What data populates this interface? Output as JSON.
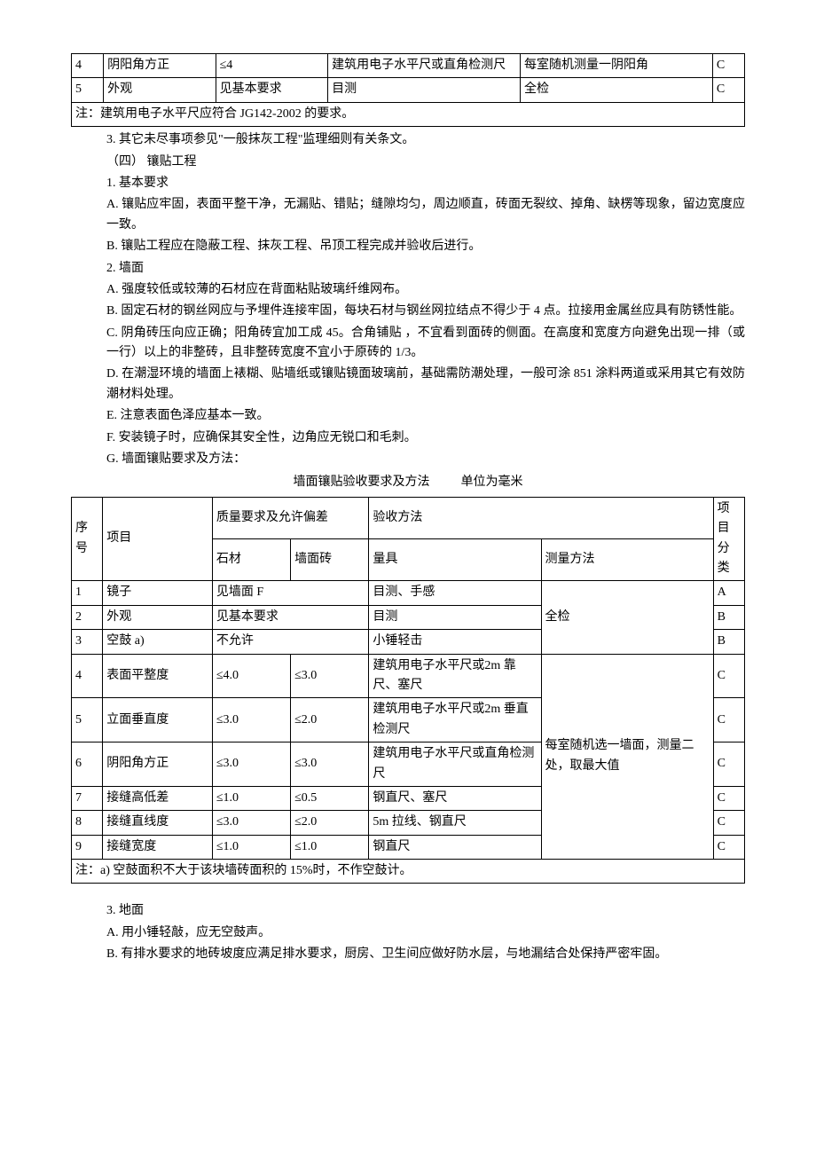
{
  "table1": {
    "rows": [
      {
        "seq": "4",
        "item": "阴阳角方正",
        "req": "≤4",
        "tool": "建筑用电子水平尺或直角检测尺",
        "method": "每室随机测量一阴阳角",
        "cat": "C"
      },
      {
        "seq": "5",
        "item": "外观",
        "req": "见基本要求",
        "tool": "目测",
        "method": "全检",
        "cat": "C"
      }
    ],
    "note": "注：建筑用电子水平尺应符合 JG142-2002 的要求。"
  },
  "body1": {
    "p3": "3.   其它未尽事项参见\"一般抹灰工程\"监理细则有关条文。",
    "s4": "（四）   镶贴工程",
    "p1": "1.   基本要求",
    "pA": "A.   镶贴应牢固，表面平整干净，无漏贴、错贴；缝隙均匀，周边顺直，砖面无裂纹、掉角、缺楞等现象，留边宽度应一致。",
    "pB": "B.   镶贴工程应在隐蔽工程、抹灰工程、吊顶工程完成并验收后进行。",
    "p2": "2.   墙面",
    "p2A": "A.   强度较低或较薄的石材应在背面粘贴玻璃纤维网布。",
    "p2B": "B.   固定石材的钢丝网应与予埋件连接牢固，每块石材与钢丝网拉结点不得少于 4 点。拉接用金属丝应具有防锈性能。",
    "p2C": "C.   阴角砖压向应正确；阳角砖宜加工成 45。合角铺贴 ，不宜看到面砖的侧面。在高度和宽度方向避免出现一排（或一行）以上的非整砖，且非整砖宽度不宜小于原砖的 1/3。",
    "p2D": "D.   在潮湿环境的墙面上裱糊、贴墙纸或镶贴镜面玻璃前，基础需防潮处理，一般可涂 851 涂料两道或采用其它有效防潮材料处理。",
    "p2E": "E.   注意表面色泽应基本一致。",
    "p2F": "F.   安装镜子时，应确保其安全性，边角应无锐口和毛刺。",
    "p2G": "G.   墙面镶贴要求及方法："
  },
  "table2": {
    "caption_left": "墙面镶贴验收要求及方法",
    "caption_right": "单位为毫米",
    "header": {
      "seq": "序号",
      "item": "项目",
      "req": "质量要求及允许偏差",
      "req_a": "石材",
      "req_b": "墙面砖",
      "method_group": "验收方法",
      "tool": "量具",
      "method": "测量方法",
      "cat": "项目分类"
    },
    "rows": [
      {
        "seq": "1",
        "item": "镜子",
        "req_a": "见墙面 F",
        "req_b": "",
        "tool": "目测、手感",
        "method": "全检",
        "cat": "A"
      },
      {
        "seq": "2",
        "item": "外观",
        "req_a": "见基本要求",
        "req_b": "",
        "tool": "目测",
        "method": "",
        "cat": "B"
      },
      {
        "seq": "3",
        "item": "空鼓 a)",
        "req_a": "不允许",
        "req_b": "",
        "tool": "小锤轻击",
        "method": "",
        "cat": "B"
      },
      {
        "seq": "4",
        "item": "表面平整度",
        "req_a": "≤4.0",
        "req_b": "≤3.0",
        "tool": "建筑用电子水平尺或2m 靠尺、塞尺",
        "method": "每室随机选一墙面，测量二处，取最大值",
        "cat": "C"
      },
      {
        "seq": "5",
        "item": "立面垂直度",
        "req_a": "≤3.0",
        "req_b": "≤2.0",
        "tool": "建筑用电子水平尺或2m 垂直检测尺",
        "method": "",
        "cat": "C"
      },
      {
        "seq": "6",
        "item": "阴阳角方正",
        "req_a": "≤3.0",
        "req_b": "≤3.0",
        "tool": "建筑用电子水平尺或直角检测尺",
        "method": "",
        "cat": "C"
      },
      {
        "seq": "7",
        "item": "接缝高低差",
        "req_a": "≤1.0",
        "req_b": "≤0.5",
        "tool": "钢直尺、塞尺",
        "method": "",
        "cat": "C"
      },
      {
        "seq": "8",
        "item": "接缝直线度",
        "req_a": "≤3.0",
        "req_b": "≤2.0",
        "tool": "5m 拉线、钢直尺",
        "method": "",
        "cat": "C"
      },
      {
        "seq": "9",
        "item": "接缝宽度",
        "req_a": "≤1.0",
        "req_b": "≤1.0",
        "tool": "钢直尺",
        "method": "",
        "cat": "C"
      }
    ],
    "note": "注：a)  空鼓面积不大于该块墙砖面积的 15%时，不作空鼓计。"
  },
  "body2": {
    "p3": "3.   地面",
    "pA": "A.   用小锤轻敲，应无空鼓声。",
    "pB": "B.   有排水要求的地砖坡度应满足排水要求，厨房、卫生间应做好防水层，与地漏结合处保持严密牢固。"
  }
}
